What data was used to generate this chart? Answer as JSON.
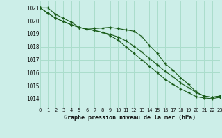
{
  "title": "Graphe pression niveau de la mer (hPa)",
  "background_color": "#cceee8",
  "grid_color": "#aaddcc",
  "line_color": "#1a5c1a",
  "x_ticks": [
    0,
    1,
    2,
    3,
    4,
    5,
    6,
    7,
    8,
    9,
    10,
    11,
    12,
    13,
    14,
    15,
    16,
    17,
    18,
    19,
    20,
    21,
    22,
    23
  ],
  "y_ticks": [
    1014,
    1015,
    1016,
    1017,
    1018,
    1019,
    1020,
    1021
  ],
  "ylim": [
    1013.3,
    1021.5
  ],
  "xlim": [
    0,
    23
  ],
  "series": [
    [
      1021.0,
      1021.0,
      1020.5,
      1020.2,
      1019.9,
      1019.5,
      1019.35,
      1019.4,
      1019.45,
      1019.5,
      1019.4,
      1019.3,
      1019.2,
      1018.8,
      1018.1,
      1017.5,
      1016.7,
      1016.2,
      1015.6,
      1015.1,
      1014.5,
      1014.2,
      1014.1,
      1014.2
    ],
    [
      1021.0,
      1020.6,
      1020.2,
      1019.95,
      1019.7,
      1019.5,
      1019.35,
      1019.25,
      1019.1,
      1018.85,
      1018.5,
      1018.0,
      1017.5,
      1017.0,
      1016.5,
      1016.0,
      1015.5,
      1015.1,
      1014.75,
      1014.45,
      1014.15,
      1014.05,
      1014.0,
      1014.1
    ],
    [
      1021.0,
      1020.6,
      1020.2,
      1019.95,
      1019.7,
      1019.5,
      1019.35,
      1019.25,
      1019.1,
      1018.95,
      1018.75,
      1018.45,
      1018.05,
      1017.6,
      1017.1,
      1016.6,
      1016.1,
      1015.7,
      1015.2,
      1014.85,
      1014.45,
      1014.2,
      1014.1,
      1014.2
    ]
  ]
}
